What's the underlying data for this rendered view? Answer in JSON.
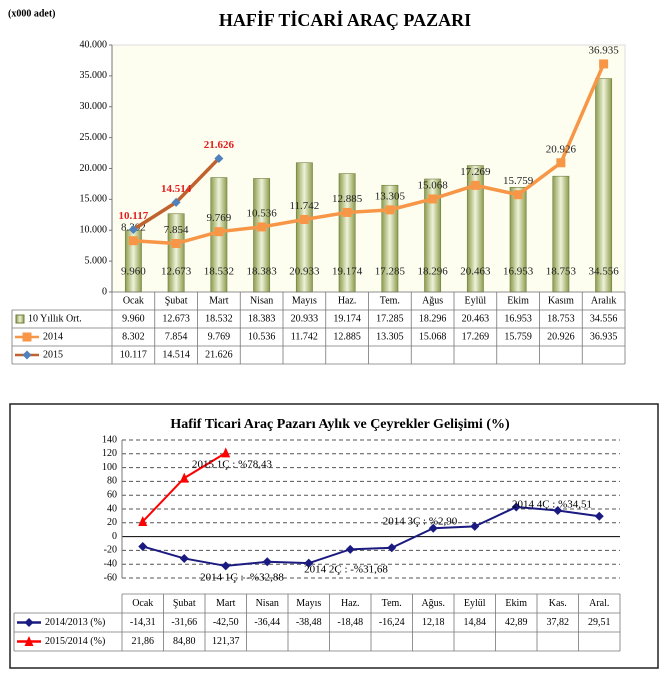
{
  "chart_data": [
    {
      "type": "bar",
      "title": "HAFİF TİCARİ ARAÇ PAZARI",
      "unit_label": "(x000 adet)",
      "categories": [
        "Ocak",
        "Şubat",
        "Mart",
        "Nisan",
        "Mayıs",
        "Haz.",
        "Tem.",
        "Ağus",
        "Eylül",
        "Ekim",
        "Kasım",
        "Aralık"
      ],
      "series": [
        {
          "name": "10 Yıllık Ort.",
          "type": "bar",
          "color": "#8c9c4e",
          "values": [
            9960,
            12673,
            18532,
            18383,
            20933,
            19174,
            17285,
            18296,
            20463,
            16953,
            18753,
            34556
          ],
          "value_labels": [
            "9.960",
            "12.673",
            "18.532",
            "18.383",
            "20.933",
            "19.174",
            "17.285",
            "18.296",
            "20.463",
            "16.953",
            "18.753",
            "34.556"
          ]
        },
        {
          "name": "2014",
          "type": "line",
          "color": "#f79646",
          "marker": "square",
          "marker_color": "#f79646",
          "label_color": "#222222",
          "values": [
            8302,
            7854,
            9769,
            10536,
            11742,
            12885,
            13305,
            15068,
            17269,
            15759,
            20926,
            36935
          ],
          "value_labels": [
            "8.302",
            "7.854",
            "9.769",
            "10.536",
            "11.742",
            "12.885",
            "13.305",
            "15.068",
            "17.269",
            "15.759",
            "20.926",
            "36.935"
          ]
        },
        {
          "name": "2015",
          "type": "line",
          "color": "#c0622d",
          "marker": "diamond",
          "marker_color": "#4f81bd",
          "label_color": "#e02020",
          "values": [
            10117,
            14514,
            21626,
            null,
            null,
            null,
            null,
            null,
            null,
            null,
            null,
            null
          ],
          "value_labels": [
            "10.117",
            "14.514",
            "21.626",
            null,
            null,
            null,
            null,
            null,
            null,
            null,
            null,
            null
          ]
        }
      ],
      "ylim": [
        0,
        40000
      ],
      "yticks": [
        0,
        {
          "value": 5000,
          "label": "5.000"
        },
        {
          "value": 10000,
          "label": "10.000"
        },
        {
          "value": 15000,
          "label": "15.000"
        },
        {
          "value": 20000,
          "label": "20.000"
        },
        {
          "value": 25000,
          "label": "25.000"
        },
        {
          "value": 30000,
          "label": "30.000"
        },
        {
          "value": 35000,
          "label": "35.000"
        },
        {
          "value": 40000,
          "label": "40.000"
        }
      ],
      "grid": false
    },
    {
      "type": "line",
      "title": "Hafif Ticari Araç Pazarı Aylık ve Çeyrekler Gelişimi (%)",
      "categories": [
        "Ocak",
        "Şubat",
        "Mart",
        "Nisan",
        "Mayıs",
        "Haz.",
        "Tem.",
        "Ağus.",
        "Eylül",
        "Ekim",
        "Kas.",
        "Aral."
      ],
      "series": [
        {
          "name": "2014/2013 (%)",
          "type": "line",
          "color": "#1a1a80",
          "marker": "diamond",
          "marker_color": "#1a1a80",
          "values": [
            -14.31,
            -31.66,
            -42.5,
            -36.44,
            -38.48,
            -18.48,
            -16.24,
            12.18,
            14.84,
            42.89,
            37.82,
            29.51
          ],
          "value_labels": [
            "-14,31",
            "-31,66",
            "-42,50",
            "-36,44",
            "-38,48",
            "-18,48",
            "-16,24",
            "12,18",
            "14,84",
            "42,89",
            "37,82",
            "29,51"
          ]
        },
        {
          "name": "2015/2014 (%)",
          "type": "line",
          "color": "#ff0000",
          "marker": "triangle",
          "marker_color": "#ff0000",
          "values": [
            21.86,
            84.8,
            121.37,
            null,
            null,
            null,
            null,
            null,
            null,
            null,
            null,
            null
          ],
          "value_labels": [
            "21,86",
            "84,80",
            "121,37",
            null,
            null,
            null,
            null,
            null,
            null,
            null,
            null,
            null
          ]
        }
      ],
      "annotations": [
        "2015 1Ç : %78,43",
        "2014 1Ç : -%32,88",
        "2014 2Ç : -%31,68",
        "2014 3Ç : %2,90",
        "2014 4Ç : %34,51"
      ],
      "ylim": [
        -60,
        140
      ],
      "yticks": [
        -60,
        -40,
        -20,
        0,
        20,
        40,
        60,
        80,
        100,
        120,
        140
      ],
      "grid": true
    }
  ]
}
